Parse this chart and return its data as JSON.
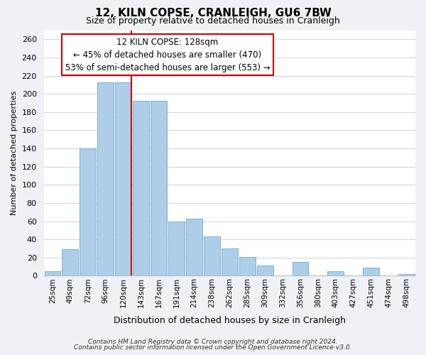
{
  "title": "12, KILN COPSE, CRANLEIGH, GU6 7BW",
  "subtitle": "Size of property relative to detached houses in Cranleigh",
  "xlabel": "Distribution of detached houses by size in Cranleigh",
  "ylabel": "Number of detached properties",
  "footer_lines": [
    "Contains HM Land Registry data © Crown copyright and database right 2024.",
    "Contains public sector information licensed under the Open Government Licence v3.0."
  ],
  "bins": [
    "25sqm",
    "49sqm",
    "72sqm",
    "96sqm",
    "120sqm",
    "143sqm",
    "167sqm",
    "191sqm",
    "214sqm",
    "238sqm",
    "262sqm",
    "285sqm",
    "309sqm",
    "332sqm",
    "356sqm",
    "380sqm",
    "403sqm",
    "427sqm",
    "451sqm",
    "474sqm",
    "498sqm"
  ],
  "values": [
    5,
    29,
    140,
    213,
    213,
    192,
    192,
    60,
    63,
    43,
    30,
    21,
    11,
    0,
    15,
    0,
    5,
    0,
    9,
    0,
    2
  ],
  "red_line_bin_index": 4,
  "annotation_title": "12 KILN COPSE: 128sqm",
  "annotation_line1": "← 45% of detached houses are smaller (470)",
  "annotation_line2": "53% of semi-detached houses are larger (553) →",
  "ylim": [
    0,
    270
  ],
  "yticks": [
    0,
    20,
    40,
    60,
    80,
    100,
    120,
    140,
    160,
    180,
    200,
    220,
    240,
    260
  ],
  "bg_color": "#eef2f7",
  "plot_bg_color": "#ffffff",
  "grid_color": "#c8d4e0",
  "bar_color": "#aecde8",
  "bar_edge_color": "#6aaad4",
  "annotation_box_color": "#ffffff",
  "annotation_box_edge": "#cc0000",
  "red_line_color": "#cc0000",
  "title_fontsize": 11,
  "subtitle_fontsize": 9,
  "ylabel_fontsize": 8,
  "xlabel_fontsize": 9,
  "ytick_fontsize": 8,
  "xtick_fontsize": 7.5,
  "footer_fontsize": 6.5,
  "ann_fontsize": 8.5
}
